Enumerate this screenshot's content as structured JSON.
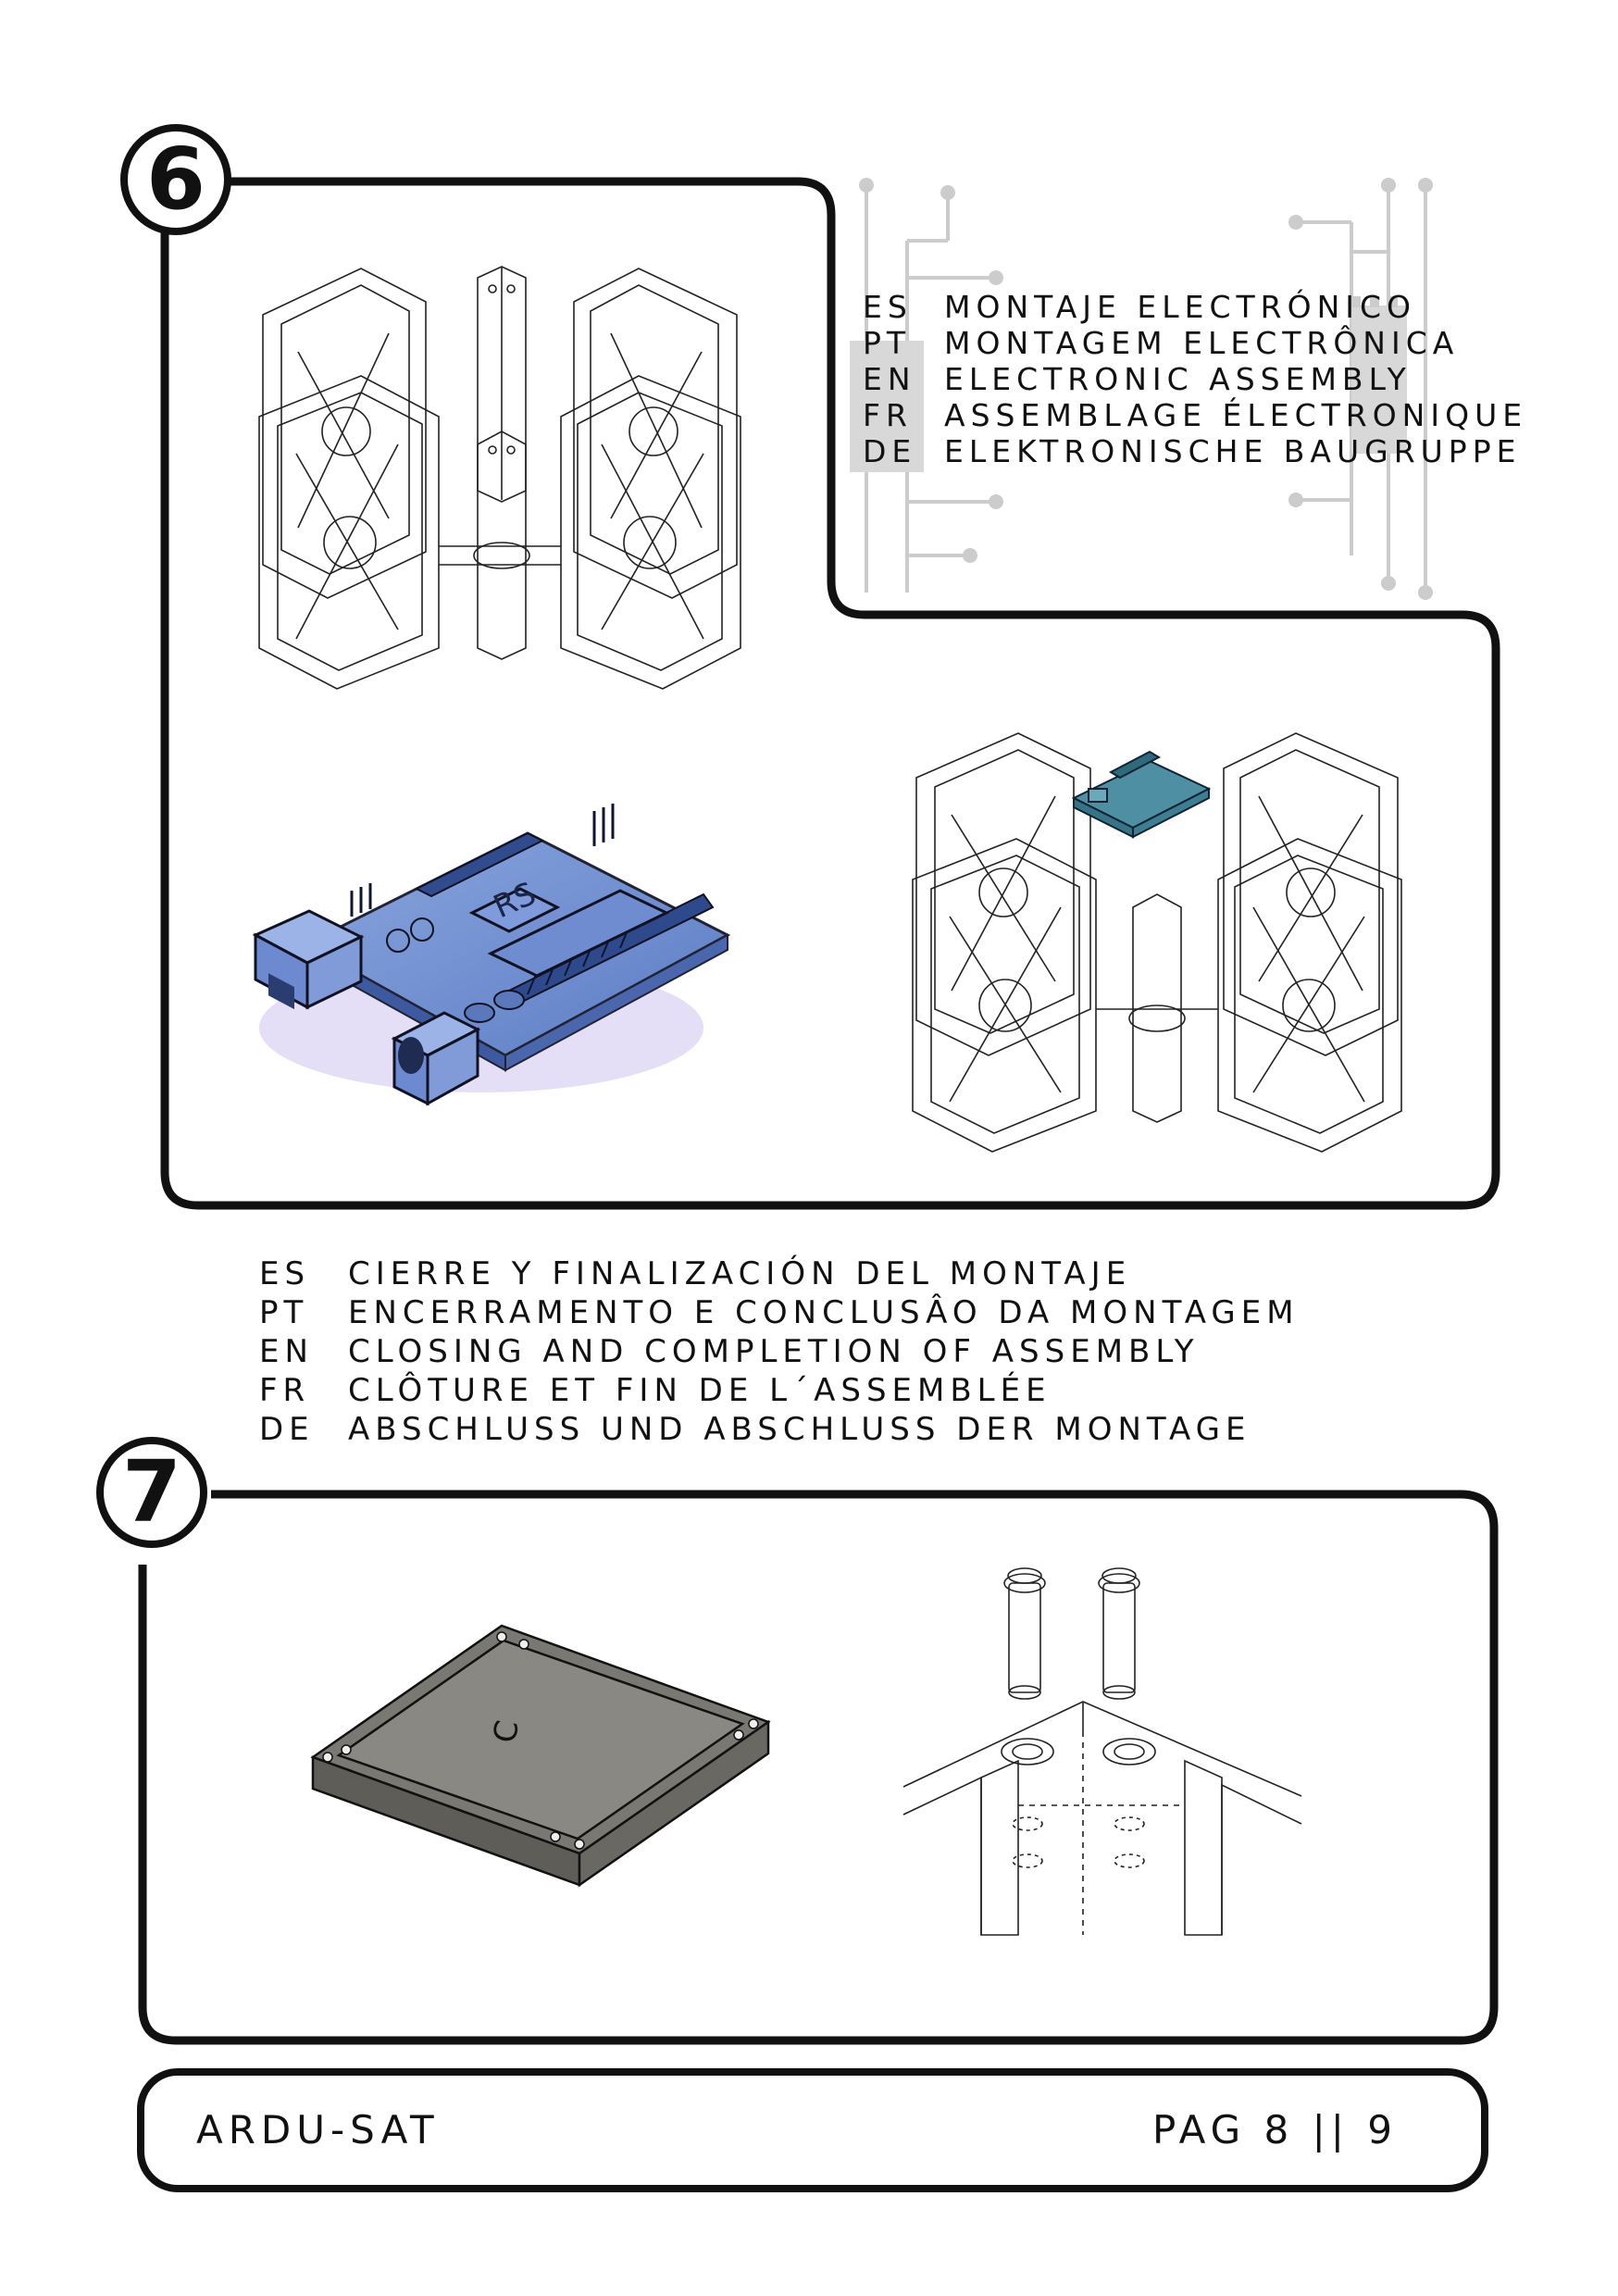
{
  "step6": {
    "number": "6",
    "translations": [
      {
        "code": "ES",
        "text": "MONTAJE ELECTRÓNICO"
      },
      {
        "code": "PT",
        "text": "MONTAGEM ELECTRÔNICA"
      },
      {
        "code": "EN",
        "text": "ELECTRONIC ASSEMBLY"
      },
      {
        "code": "FR",
        "text": "ASSEMBLAGE ÉLECTRONIQUE"
      },
      {
        "code": "DE",
        "text": "ELEKTRONISCHE BAUGRUPPE"
      }
    ]
  },
  "step7": {
    "number": "7",
    "translations": [
      {
        "code": "ES",
        "text": "CIERRE Y FINALIZACIÓN DEL MONTAJE"
      },
      {
        "code": "PT",
        "text": "ENCERRAMENTO E CONCLUSÂO DA MONTAGEM"
      },
      {
        "code": "EN",
        "text": "CLOSING AND COMPLETION OF ASSEMBLY"
      },
      {
        "code": "FR",
        "text": "CLÔTURE ET FIN DE L´ASSEMBLÉE"
      },
      {
        "code": "DE",
        "text": "ABSCHLUSS UND ABSCHLUSS DER MONTAGE"
      }
    ],
    "plate_letter": "C"
  },
  "footer": {
    "title": "ARDU-SAT",
    "page": "PAG 8 || 9"
  },
  "colors": {
    "outline": "#111111",
    "board": "#6f8fd0",
    "board_small": "#4f8fa3",
    "plate": "#6f6d68",
    "circuit": "#cccccc"
  }
}
